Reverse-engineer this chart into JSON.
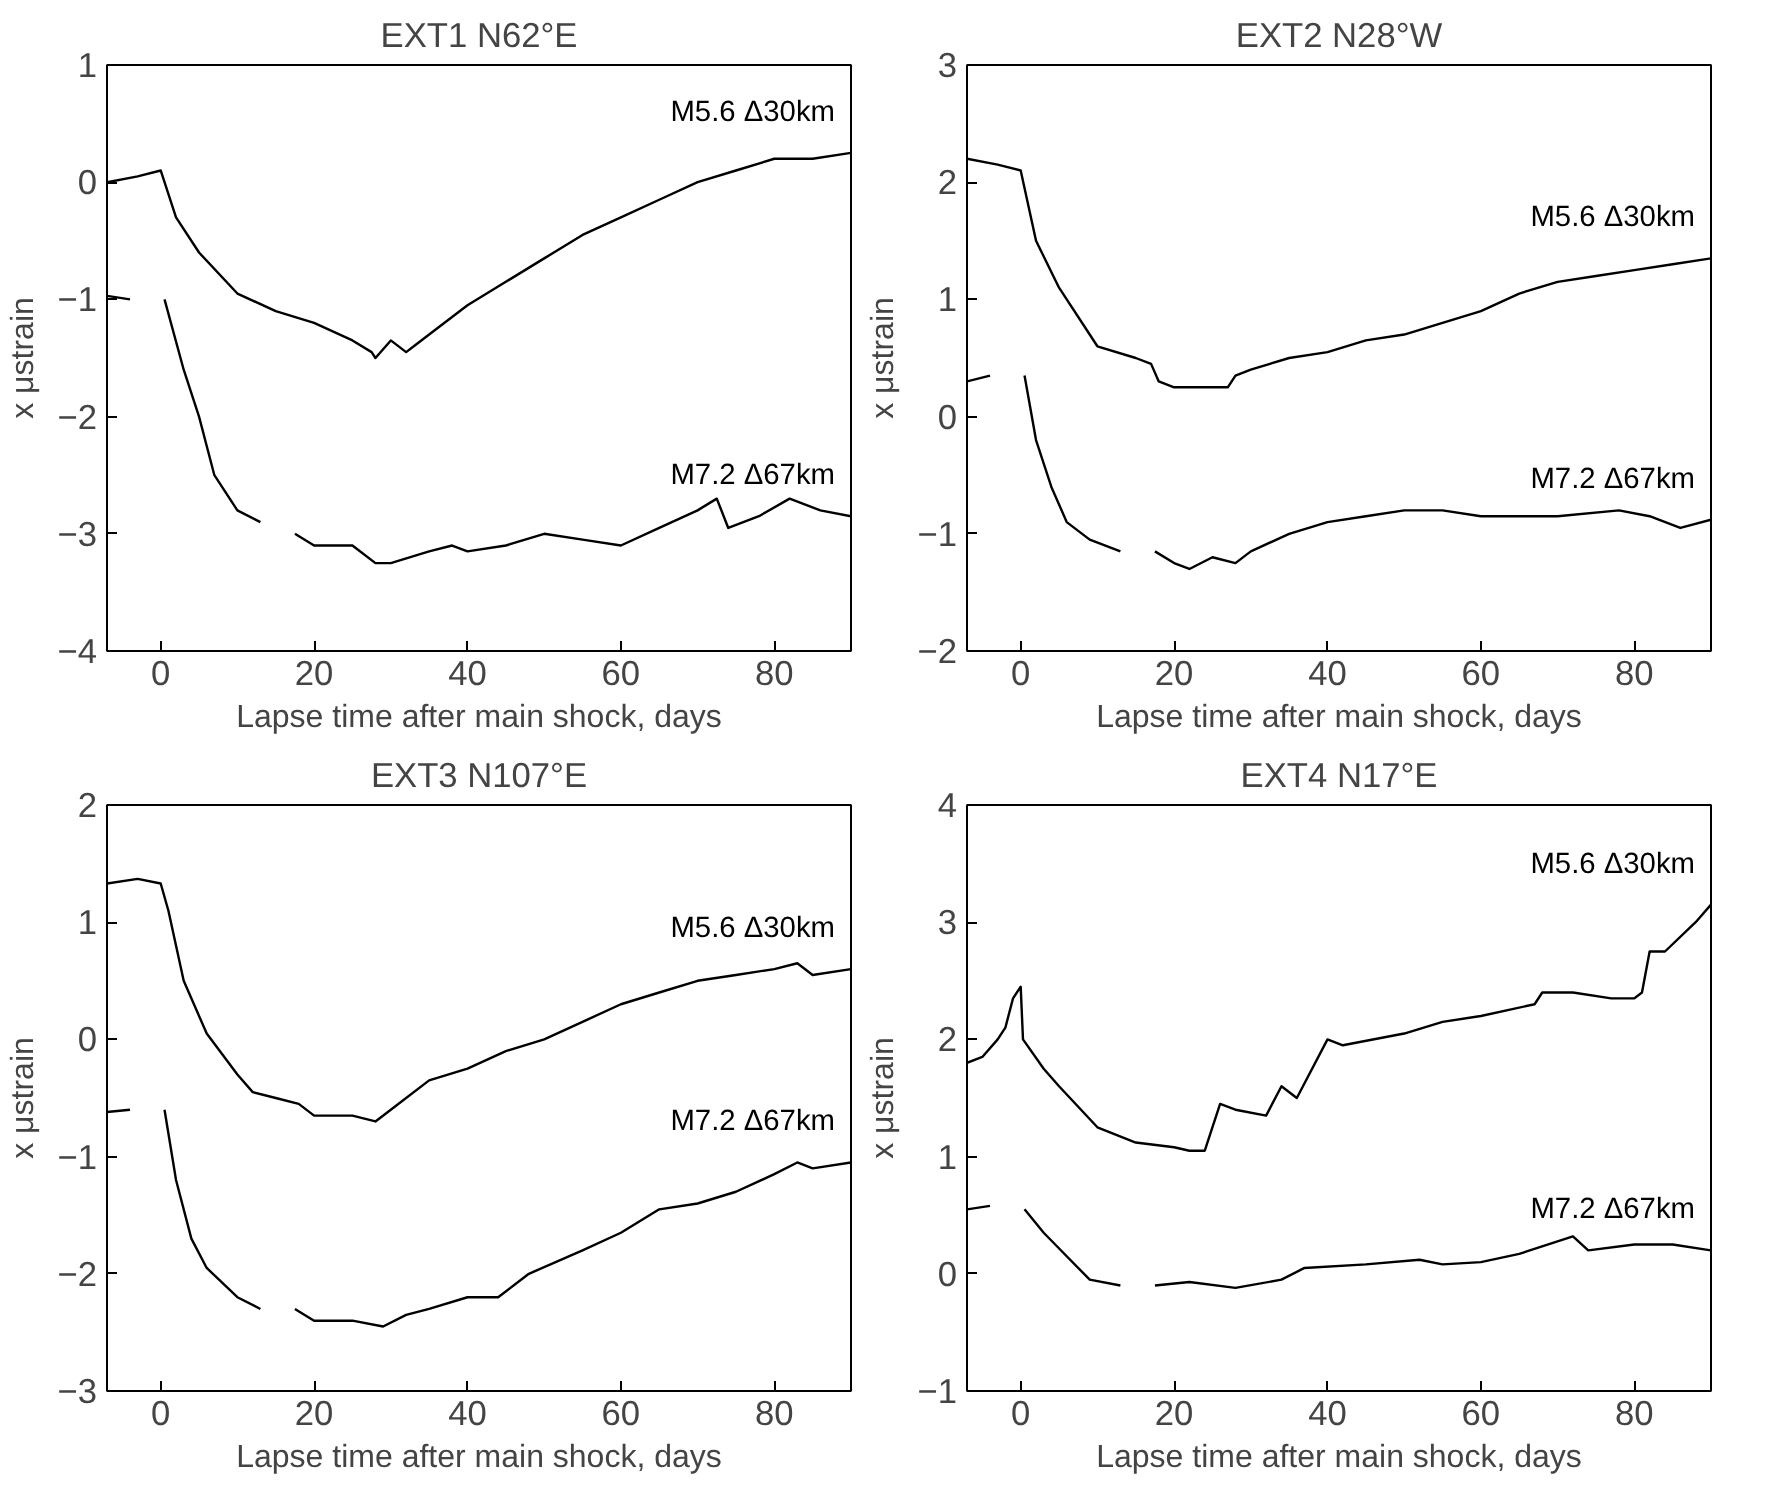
{
  "chart_data": [
    {
      "type": "line",
      "title": "EXT1 N62°E",
      "xlabel": "Lapse time after main shock, days",
      "ylabel": "x μstrain",
      "xlim": [
        -7,
        90
      ],
      "xticks": [
        0,
        20,
        40,
        60,
        80
      ],
      "ylim": [
        -4,
        1
      ],
      "yticks": [
        -4,
        -3,
        -2,
        -1,
        0,
        1
      ],
      "grid": false,
      "series": [
        {
          "name": "M5.6 Δ30km",
          "color": "#000000",
          "x": [
            -7,
            -3,
            0,
            2,
            5,
            10,
            15,
            20,
            25,
            27.5,
            28,
            30,
            32,
            33,
            35,
            40,
            45,
            50,
            55,
            60,
            65,
            70,
            75,
            80,
            85,
            90
          ],
          "values": [
            0.0,
            0.05,
            0.1,
            -0.3,
            -0.6,
            -0.95,
            -1.1,
            -1.2,
            -1.35,
            -1.45,
            -1.5,
            -1.35,
            -1.45,
            -1.4,
            -1.3,
            -1.05,
            -0.85,
            -0.65,
            -0.45,
            -0.3,
            -0.15,
            0.0,
            0.1,
            0.2,
            0.2,
            0.25
          ]
        },
        {
          "name": "M7.2 Δ67km",
          "color": "#000000",
          "x": [
            -7,
            -4,
            -2,
            0.5,
            3,
            5,
            7,
            10,
            13,
            15,
            17.5,
            20,
            25,
            28,
            30,
            35,
            38,
            40,
            45,
            50,
            55,
            60,
            65,
            70,
            72.5,
            74,
            78,
            82,
            86,
            90
          ],
          "values": [
            -0.97,
            -1.0,
            null,
            -1.0,
            -1.6,
            -2.0,
            -2.5,
            -2.8,
            -2.9,
            null,
            -3.0,
            -3.1,
            -3.1,
            -3.25,
            -3.25,
            -3.15,
            -3.1,
            -3.15,
            -3.1,
            -3.0,
            -3.05,
            -3.1,
            -2.95,
            -2.8,
            -2.7,
            -2.95,
            -2.85,
            -2.7,
            -2.8,
            -2.85
          ]
        }
      ]
    },
    {
      "type": "line",
      "title": "EXT2 N28°W",
      "xlabel": "Lapse time after main shock, days",
      "ylabel": "x μstrain",
      "xlim": [
        -7,
        90
      ],
      "xticks": [
        0,
        20,
        40,
        60,
        80
      ],
      "ylim": [
        -2,
        3
      ],
      "yticks": [
        -2,
        -1,
        0,
        1,
        2,
        3
      ],
      "grid": false,
      "series": [
        {
          "name": "M5.6 Δ30km",
          "color": "#000000",
          "x": [
            -7,
            -3,
            0,
            2,
            5,
            10,
            15,
            17,
            18,
            20,
            25,
            27,
            28,
            30,
            35,
            40,
            45,
            50,
            55,
            60,
            65,
            70,
            75,
            80,
            85,
            90
          ],
          "values": [
            2.2,
            2.15,
            2.1,
            1.5,
            1.1,
            0.6,
            0.5,
            0.45,
            0.3,
            0.25,
            0.25,
            0.25,
            0.35,
            0.4,
            0.5,
            0.55,
            0.65,
            0.7,
            0.8,
            0.9,
            1.05,
            1.15,
            1.2,
            1.25,
            1.3,
            1.35
          ]
        },
        {
          "name": "M7.2 Δ67km",
          "color": "#000000",
          "x": [
            -7,
            -4,
            -2,
            0.5,
            2,
            4,
            6,
            9,
            13,
            15,
            17.5,
            20,
            22,
            25,
            28,
            30,
            35,
            40,
            45,
            50,
            55,
            60,
            70,
            78,
            82,
            86,
            90
          ],
          "values": [
            0.3,
            0.35,
            null,
            0.35,
            -0.2,
            -0.6,
            -0.9,
            -1.05,
            -1.15,
            null,
            -1.15,
            -1.25,
            -1.3,
            -1.2,
            -1.25,
            -1.15,
            -1.0,
            -0.9,
            -0.85,
            -0.8,
            -0.8,
            -0.85,
            -0.85,
            -0.8,
            -0.85,
            -0.95,
            -0.88
          ]
        }
      ]
    },
    {
      "type": "line",
      "title": "EXT3 N107°E",
      "xlabel": "Lapse time after main shock, days",
      "ylabel": "x μstrain",
      "xlim": [
        -7,
        90
      ],
      "xticks": [
        0,
        20,
        40,
        60,
        80
      ],
      "ylim": [
        -3,
        2
      ],
      "yticks": [
        -3,
        -2,
        -1,
        0,
        1,
        2
      ],
      "grid": false,
      "series": [
        {
          "name": "M5.6 Δ30km",
          "color": "#000000",
          "x": [
            -7,
            -3,
            0,
            1,
            3,
            6,
            10,
            12,
            15,
            18,
            20,
            25,
            28,
            30,
            35,
            40,
            45,
            50,
            55,
            60,
            65,
            70,
            75,
            80,
            83,
            85,
            90
          ],
          "values": [
            1.33,
            1.37,
            1.33,
            1.1,
            0.5,
            0.05,
            -0.3,
            -0.45,
            -0.5,
            -0.55,
            -0.65,
            -0.65,
            -0.7,
            -0.6,
            -0.35,
            -0.25,
            -0.1,
            0.0,
            0.15,
            0.3,
            0.4,
            0.5,
            0.55,
            0.6,
            0.65,
            0.55,
            0.6
          ]
        },
        {
          "name": "M7.2 Δ67km",
          "color": "#000000",
          "x": [
            -7,
            -4,
            -2,
            0.5,
            2,
            4,
            6,
            10,
            13,
            15,
            17.5,
            20,
            25,
            29,
            32,
            35,
            40,
            44,
            48,
            55,
            60,
            65,
            70,
            75,
            80,
            83,
            85,
            90
          ],
          "values": [
            -0.62,
            -0.6,
            null,
            -0.6,
            -1.2,
            -1.7,
            -1.95,
            -2.2,
            -2.3,
            null,
            -2.3,
            -2.4,
            -2.4,
            -2.45,
            -2.35,
            -2.3,
            -2.2,
            -2.2,
            -2.0,
            -1.8,
            -1.65,
            -1.45,
            -1.4,
            -1.3,
            -1.15,
            -1.05,
            -1.1,
            -1.05
          ]
        }
      ]
    },
    {
      "type": "line",
      "title": "EXT4 N17°E",
      "xlabel": "Lapse time after main shock, days",
      "ylabel": "x μstrain",
      "xlim": [
        -7,
        90
      ],
      "xticks": [
        0,
        20,
        40,
        60,
        80
      ],
      "ylim": [
        -1,
        4
      ],
      "yticks": [
        -1,
        0,
        1,
        2,
        3,
        4
      ],
      "grid": false,
      "series": [
        {
          "name": "M5.6 Δ30km",
          "color": "#000000",
          "x": [
            -7,
            -5,
            -3,
            -2,
            -1,
            0,
            0.3,
            3,
            5,
            10,
            15,
            20,
            22,
            24,
            26,
            28,
            32,
            34,
            36,
            40,
            42,
            50,
            55,
            60,
            67,
            68,
            72,
            77,
            80,
            81,
            82,
            84,
            88,
            90
          ],
          "values": [
            1.8,
            1.85,
            2.0,
            2.1,
            2.35,
            2.45,
            2.0,
            1.75,
            1.6,
            1.25,
            1.12,
            1.08,
            1.05,
            1.05,
            1.45,
            1.4,
            1.35,
            1.6,
            1.5,
            2.0,
            1.95,
            2.05,
            2.15,
            2.2,
            2.3,
            2.4,
            2.4,
            2.35,
            2.35,
            2.4,
            2.75,
            2.75,
            3.0,
            3.15
          ]
        },
        {
          "name": "M7.2 Δ67km",
          "color": "#000000",
          "x": [
            -7,
            -4,
            -2,
            0.5,
            3,
            6,
            9,
            13,
            15,
            17.5,
            22,
            28,
            34,
            37,
            45,
            52,
            55,
            60,
            65,
            72,
            74,
            80,
            85,
            90
          ],
          "values": [
            0.55,
            0.58,
            null,
            0.55,
            0.35,
            0.15,
            -0.05,
            -0.1,
            null,
            -0.1,
            -0.07,
            -0.12,
            -0.05,
            0.05,
            0.08,
            0.12,
            0.08,
            0.1,
            0.17,
            0.32,
            0.2,
            0.25,
            0.25,
            0.2
          ]
        }
      ]
    }
  ]
}
